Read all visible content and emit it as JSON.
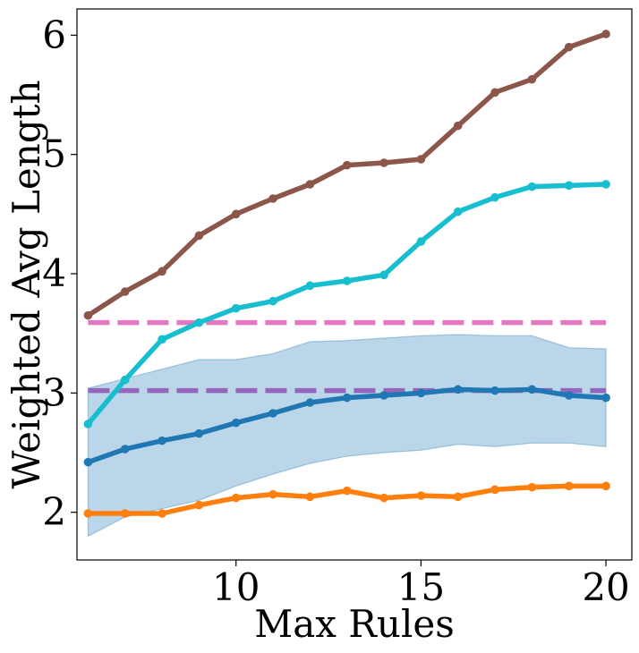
{
  "chart_data": {
    "type": "line",
    "title": "",
    "xlabel": "Max Rules",
    "ylabel": "Weighted Avg Length",
    "xlim": [
      5.7,
      20.7
    ],
    "ylim": [
      1.6,
      6.22
    ],
    "xticks": [
      10,
      15,
      20
    ],
    "yticks": [
      2,
      3,
      4,
      5,
      6
    ],
    "grid": false,
    "legend": "none",
    "x": [
      6,
      7,
      8,
      9,
      10,
      11,
      12,
      13,
      14,
      15,
      16,
      17,
      18,
      19,
      20
    ],
    "series": [
      {
        "color": "#8c564b",
        "values": [
          3.65,
          3.85,
          4.02,
          4.32,
          4.5,
          4.63,
          4.75,
          4.91,
          4.93,
          4.96,
          5.24,
          5.52,
          5.63,
          5.9,
          6.01
        ]
      },
      {
        "color": "#17becf",
        "values": [
          2.74,
          3.11,
          3.45,
          3.59,
          3.71,
          3.77,
          3.9,
          3.94,
          3.99,
          4.27,
          4.52,
          4.64,
          4.73,
          4.74,
          4.75
        ]
      },
      {
        "color": "#1f77b4",
        "values": [
          2.42,
          2.53,
          2.6,
          2.66,
          2.75,
          2.83,
          2.92,
          2.96,
          2.98,
          3.0,
          3.03,
          3.02,
          3.03,
          2.98,
          2.96
        ],
        "band_lower": [
          1.8,
          1.96,
          2.03,
          2.1,
          2.22,
          2.32,
          2.41,
          2.47,
          2.5,
          2.52,
          2.57,
          2.55,
          2.58,
          2.58,
          2.55
        ],
        "band_upper": [
          3.04,
          3.12,
          3.2,
          3.28,
          3.28,
          3.33,
          3.43,
          3.44,
          3.46,
          3.48,
          3.49,
          3.48,
          3.48,
          3.38,
          3.37
        ],
        "band_color": "#1f77b4"
      },
      {
        "color": "#ff7f0e",
        "values": [
          1.99,
          1.99,
          1.99,
          2.06,
          2.12,
          2.15,
          2.13,
          2.18,
          2.12,
          2.14,
          2.13,
          2.19,
          2.21,
          2.22,
          2.22
        ]
      }
    ],
    "reference_lines": [
      {
        "y": 3.59,
        "color": "#e377c2",
        "style": "dashed"
      },
      {
        "y": 3.02,
        "color": "#9467bd",
        "style": "dashed"
      }
    ]
  }
}
